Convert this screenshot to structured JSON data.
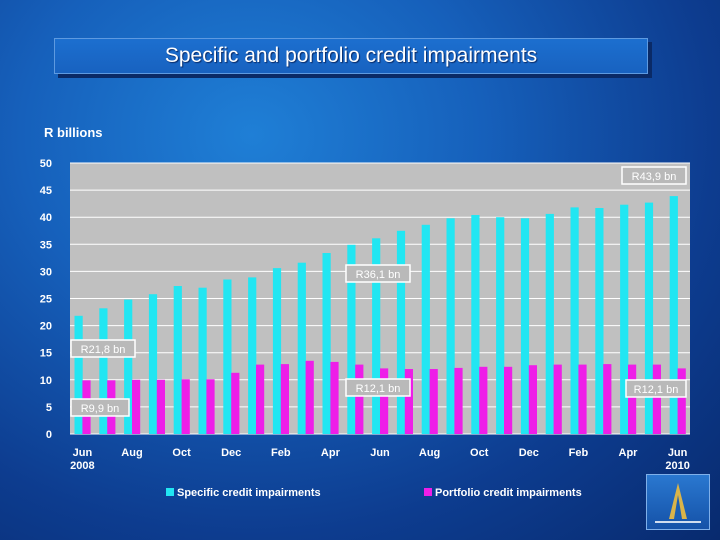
{
  "title": "Specific and portfolio credit impairments",
  "chart_data": {
    "type": "bar",
    "ylabel": "R billions",
    "ylim": [
      0,
      50
    ],
    "yticks": [
      0,
      5,
      10,
      15,
      20,
      25,
      30,
      35,
      40,
      45,
      50
    ],
    "x_tick_labels": [
      {
        "index": 0,
        "label": "Jun",
        "sub": "2008"
      },
      {
        "index": 2,
        "label": "Aug"
      },
      {
        "index": 4,
        "label": "Oct"
      },
      {
        "index": 6,
        "label": "Dec"
      },
      {
        "index": 8,
        "label": "Feb"
      },
      {
        "index": 10,
        "label": "Apr"
      },
      {
        "index": 12,
        "label": "Jun"
      },
      {
        "index": 14,
        "label": "Aug"
      },
      {
        "index": 16,
        "label": "Oct"
      },
      {
        "index": 18,
        "label": "Dec"
      },
      {
        "index": 20,
        "label": "Feb"
      },
      {
        "index": 22,
        "label": "Apr"
      },
      {
        "index": 24,
        "label": "Jun",
        "sub": "2010"
      }
    ],
    "series": [
      {
        "name": "Specific credit impairments",
        "color": "#22e6f2",
        "values": [
          21.8,
          23.2,
          24.8,
          25.8,
          27.3,
          27.0,
          28.5,
          28.9,
          30.6,
          31.6,
          33.4,
          34.9,
          36.1,
          37.5,
          38.6,
          39.8,
          40.4,
          40.0,
          39.8,
          40.6,
          41.8,
          41.7,
          42.3,
          42.7,
          43.9
        ]
      },
      {
        "name": "Portfolio credit impairments",
        "color": "#ee1ee8",
        "values": [
          9.9,
          9.9,
          10.0,
          10.0,
          10.1,
          10.1,
          11.3,
          12.8,
          12.9,
          13.5,
          13.3,
          12.8,
          12.1,
          12.0,
          12.0,
          12.2,
          12.4,
          12.4,
          12.7,
          12.8,
          12.8,
          12.9,
          12.8,
          12.8,
          12.1
        ]
      }
    ],
    "annotations": [
      {
        "text": "R43,9 bn",
        "index": 24,
        "value": 43.9
      },
      {
        "text": "R36,1 bn",
        "index": 12,
        "value": 36.1
      },
      {
        "text": "R21,8 bn",
        "index": 0,
        "value": 21.8
      },
      {
        "text": "R12,1 bn",
        "index": 12,
        "value": 12.1
      },
      {
        "text": "R12,1 bn",
        "index": 24,
        "value": 12.1
      },
      {
        "text": "R9,9 bn",
        "index": 0,
        "value": 9.9
      }
    ],
    "legend_position": "bottom",
    "grid": true
  }
}
